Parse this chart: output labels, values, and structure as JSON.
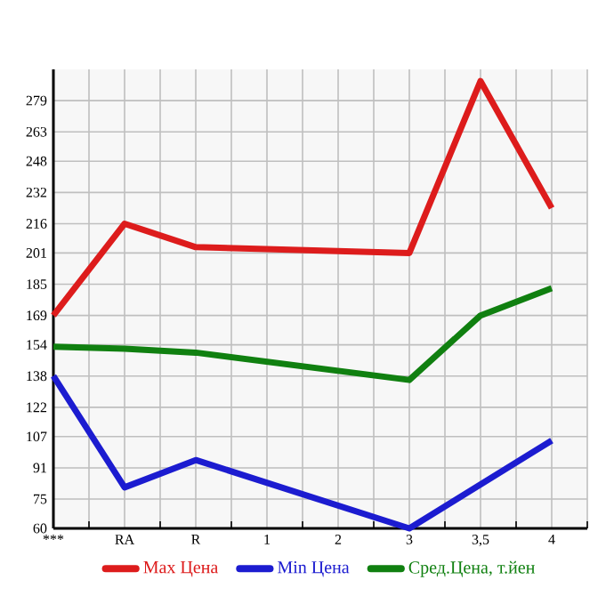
{
  "chart_data": {
    "type": "line",
    "categories": [
      "***",
      "RA",
      "R",
      "1",
      "2",
      "3",
      "3,5",
      "4"
    ],
    "series": [
      {
        "name": "Max Цена",
        "color": "#dd1c1c",
        "values": [
          169,
          216,
          204,
          null,
          null,
          201,
          289,
          224
        ]
      },
      {
        "name": "Min Цена",
        "color": "#1c1cd0",
        "values": [
          138,
          81,
          95,
          null,
          null,
          60,
          null,
          105
        ]
      },
      {
        "name": "Сред.Цена, т.йен",
        "color": "#108010",
        "values": [
          153,
          152,
          150,
          null,
          null,
          136,
          169,
          183
        ]
      }
    ],
    "ylim": [
      60,
      295
    ],
    "yticks": [
      60,
      75,
      91,
      107,
      122,
      138,
      154,
      169,
      185,
      201,
      216,
      232,
      248,
      263,
      279
    ],
    "grid": true,
    "legend": "bottom",
    "marker": "none",
    "line_style": "solid"
  }
}
